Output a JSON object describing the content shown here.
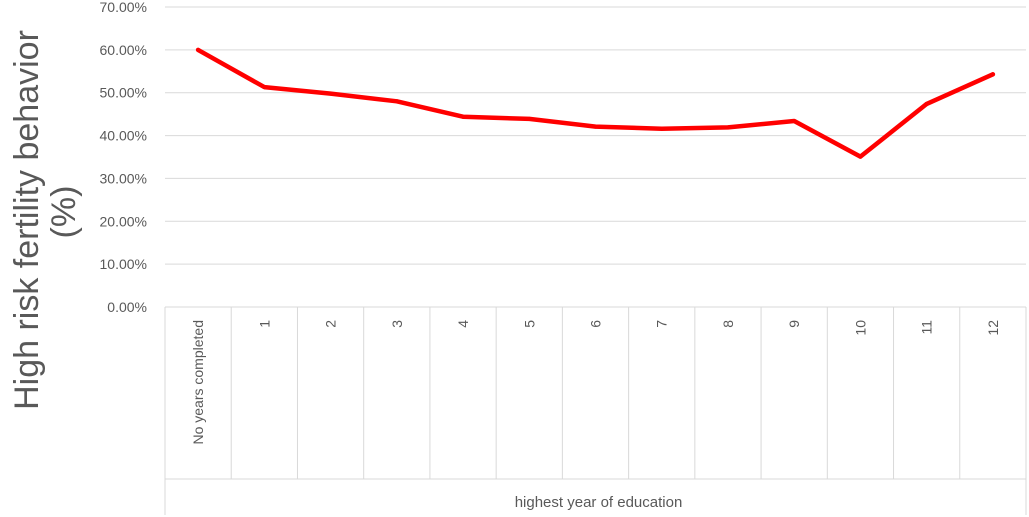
{
  "chart_data": {
    "type": "line",
    "categories": [
      "No years completed",
      "1",
      "2",
      "3",
      "4",
      "5",
      "6",
      "7",
      "8",
      "9",
      "10",
      "11",
      "12"
    ],
    "series": [
      {
        "values": [
          60.0,
          51.3,
          49.8,
          48.0,
          44.4,
          43.9,
          42.1,
          41.6,
          41.9,
          43.4,
          35.1,
          47.4,
          54.3
        ],
        "color": "#ff0000"
      }
    ],
    "title": "",
    "xlabel": "highest year of education",
    "ylabel_line1": "High risk fertility behavior",
    "ylabel_line2": "(%)",
    "ylim": [
      0,
      70
    ],
    "yticks": [
      0,
      10,
      20,
      30,
      40,
      50,
      60,
      70
    ],
    "ytick_labels": [
      "0.00%",
      "10.00%",
      "20.00%",
      "30.00%",
      "40.00%",
      "50.00%",
      "60.00%",
      "70.00%"
    ],
    "grid": true,
    "legend": "none",
    "colors": {
      "line": "#ff0000",
      "grid": "#d9d9d9",
      "text": "#595959"
    }
  }
}
